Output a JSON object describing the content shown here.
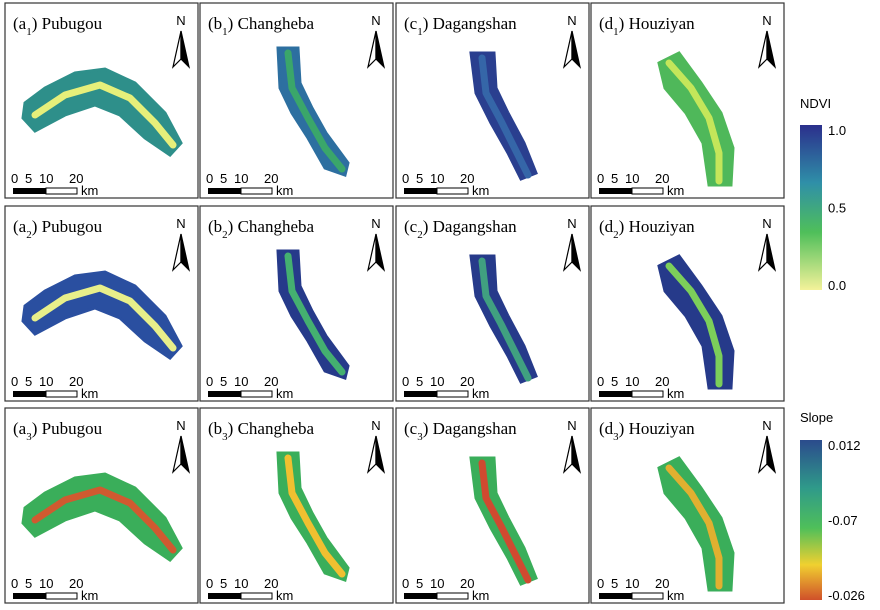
{
  "panels": [
    [
      {
        "prefix": "(a",
        "sub": "1",
        "suffix": ") Pubugou"
      },
      {
        "prefix": "(b",
        "sub": "1",
        "suffix": ") Changheba"
      },
      {
        "prefix": "(c",
        "sub": "1",
        "suffix": ") Dagangshan"
      },
      {
        "prefix": "(d",
        "sub": "1",
        "suffix": ") Houziyan"
      }
    ],
    [
      {
        "prefix": "(a",
        "sub": "2",
        "suffix": ") Pubugou"
      },
      {
        "prefix": "(b",
        "sub": "2",
        "suffix": ") Changheba"
      },
      {
        "prefix": "(c",
        "sub": "2",
        "suffix": ") Dagangshan"
      },
      {
        "prefix": "(d",
        "sub": "2",
        "suffix": ") Houziyan"
      }
    ],
    [
      {
        "prefix": "(a",
        "sub": "3",
        "suffix": ") Pubugou"
      },
      {
        "prefix": "(b",
        "sub": "3",
        "suffix": ") Changheba"
      },
      {
        "prefix": "(c",
        "sub": "3",
        "suffix": ") Dagangshan"
      },
      {
        "prefix": "(d",
        "sub": "3",
        "suffix": ") Houziyan"
      }
    ]
  ],
  "north": "N",
  "scale_bar": {
    "ticks": [
      "0",
      "5",
      "10",
      "20"
    ],
    "unit": "km"
  },
  "legends": [
    {
      "title": "NDVI",
      "ticks": [
        "1.0",
        "0.5",
        "0.0"
      ]
    },
    {
      "title": "Slope",
      "ticks": [
        "0.012",
        "-0.07",
        "-0.026"
      ]
    }
  ]
}
